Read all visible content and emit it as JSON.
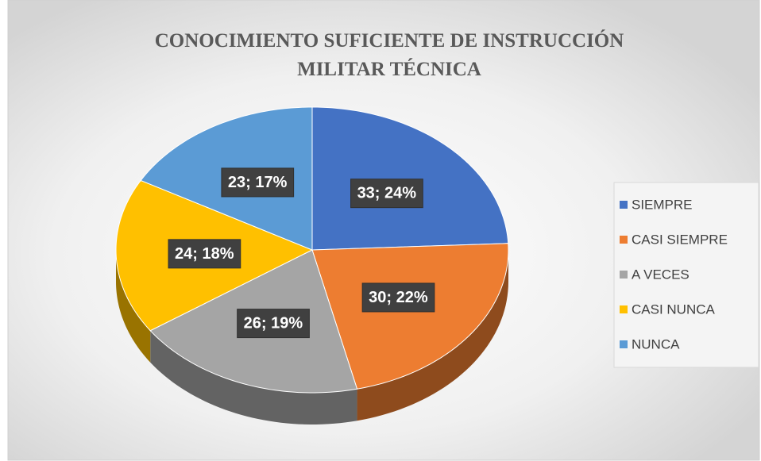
{
  "chart_data": {
    "type": "pie3d",
    "title": "CONOCIMIENTO SUFICIENTE DE INSTRUCCIÓN MILITAR TÉCNICA",
    "categories": [
      "SIEMPRE",
      "CASI SIEMPRE",
      "A VECES",
      "CASI NUNCA",
      "NUNCA"
    ],
    "values": [
      33,
      30,
      26,
      24,
      23
    ],
    "value_labels": [
      "33; 24%",
      "30; 22%",
      "26; 19%",
      "24; 18%",
      "23; 17%"
    ],
    "colors": [
      "#4472c4",
      "#ed7d31",
      "#a5a5a5",
      "#ffc000",
      "#5b9bd5"
    ],
    "legend": "right"
  }
}
